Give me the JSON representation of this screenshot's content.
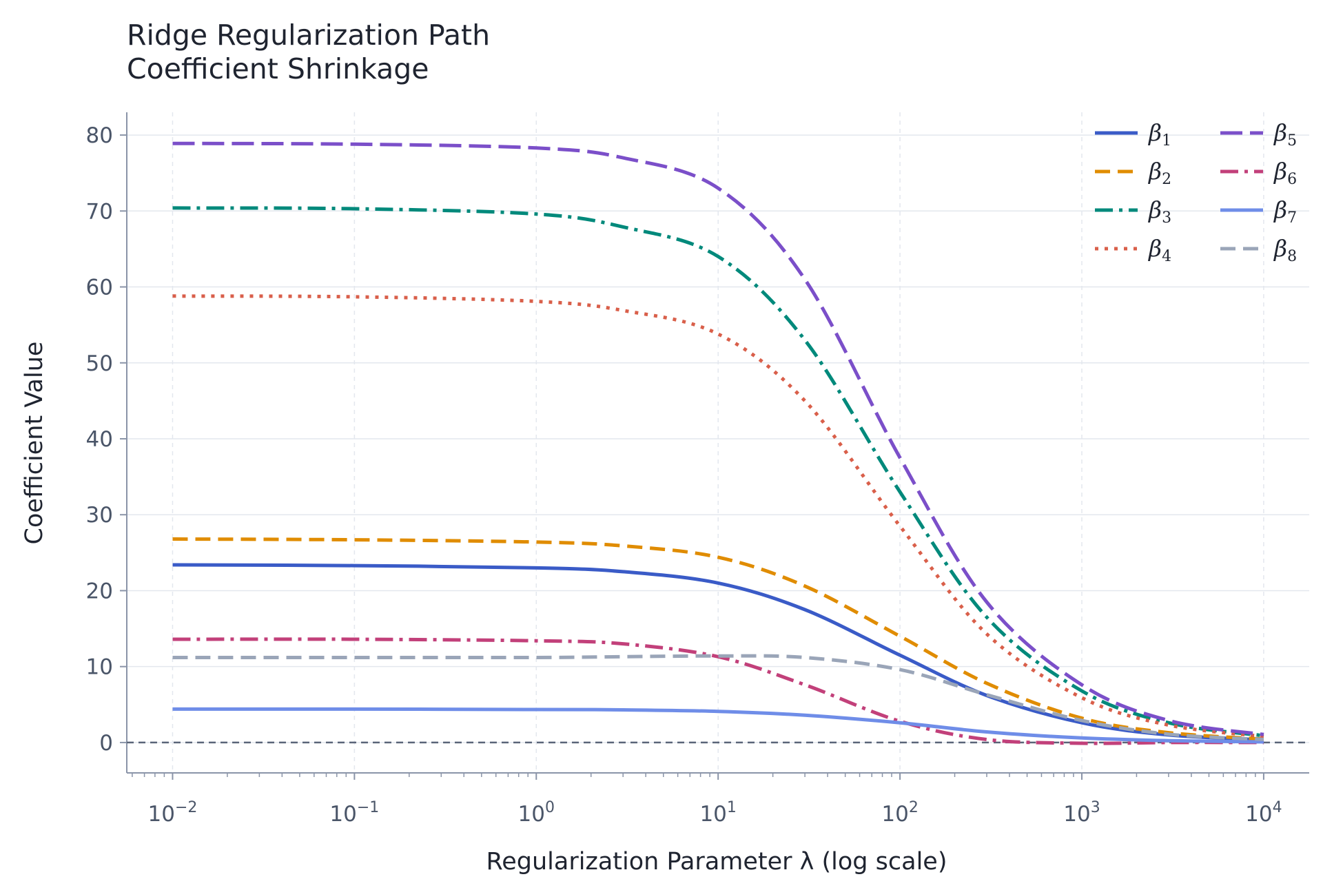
{
  "chart_data": {
    "type": "line",
    "title": "Ridge Regularization Path",
    "subtitle": "Coefficient Shrinkage",
    "xlabel": "Regularization Parameter λ (log scale)",
    "ylabel": "Coefficient Value",
    "x_scale": "log",
    "xlim": [
      0.0056,
      17800
    ],
    "ylim": [
      -4,
      83
    ],
    "x_ticks": [
      0.01,
      0.1,
      1,
      10,
      100,
      1000,
      10000
    ],
    "x_tick_base": "10",
    "x_tick_exponents": [
      "−2",
      "−1",
      "0",
      "1",
      "2",
      "3",
      "4"
    ],
    "y_ticks": [
      "0",
      "10",
      "20",
      "30",
      "40",
      "50",
      "60",
      "70",
      "80"
    ],
    "grid": true,
    "reference_line": {
      "y": 0,
      "style": "dashed",
      "color": "#5a6478"
    },
    "legend": {
      "placement": "top-right",
      "columns": 2
    },
    "x": [
      0.01,
      0.1,
      1,
      3,
      10,
      30,
      100,
      300,
      1000,
      3000,
      10000
    ],
    "series": [
      {
        "name": "β",
        "subscript": "1",
        "color": "#3a5bc7",
        "style": "solid",
        "values": [
          23.4,
          23.3,
          23.0,
          22.5,
          21.0,
          17.5,
          11.5,
          6.2,
          2.6,
          1.0,
          0.35
        ]
      },
      {
        "name": "β",
        "subscript": "2",
        "color": "#e08c00",
        "style": "dashed",
        "values": [
          26.8,
          26.7,
          26.4,
          25.9,
          24.4,
          20.6,
          14.0,
          7.8,
          3.2,
          1.3,
          0.45
        ]
      },
      {
        "name": "β",
        "subscript": "3",
        "color": "#00897b",
        "style": "dashdot",
        "values": [
          70.4,
          70.3,
          69.6,
          67.9,
          64.0,
          53.0,
          33.0,
          16.5,
          6.8,
          2.6,
          0.9
        ]
      },
      {
        "name": "β",
        "subscript": "4",
        "color": "#d95f4a",
        "style": "dotted",
        "values": [
          58.8,
          58.7,
          58.1,
          56.9,
          53.8,
          45.0,
          28.5,
          14.3,
          5.9,
          2.3,
          0.8
        ]
      },
      {
        "name": "β",
        "subscript": "5",
        "color": "#7b4fc9",
        "style": "longdash",
        "values": [
          78.9,
          78.8,
          78.3,
          77.0,
          73.0,
          61.0,
          37.5,
          18.5,
          7.6,
          2.9,
          1.05
        ]
      },
      {
        "name": "β",
        "subscript": "6",
        "color": "#c2407a",
        "style": "dashdot",
        "values": [
          13.6,
          13.6,
          13.4,
          13.0,
          11.3,
          7.6,
          2.8,
          0.4,
          -0.1,
          0.0,
          0.0
        ]
      },
      {
        "name": "β",
        "subscript": "7",
        "color": "#6f8de8",
        "style": "solid",
        "values": [
          4.4,
          4.4,
          4.35,
          4.3,
          4.1,
          3.6,
          2.6,
          1.4,
          0.6,
          0.25,
          0.08
        ]
      },
      {
        "name": "β",
        "subscript": "8",
        "color": "#9aa5b8",
        "style": "dashed",
        "values": [
          11.2,
          11.2,
          11.2,
          11.3,
          11.4,
          11.2,
          9.6,
          6.3,
          2.9,
          1.1,
          0.4
        ]
      }
    ]
  }
}
